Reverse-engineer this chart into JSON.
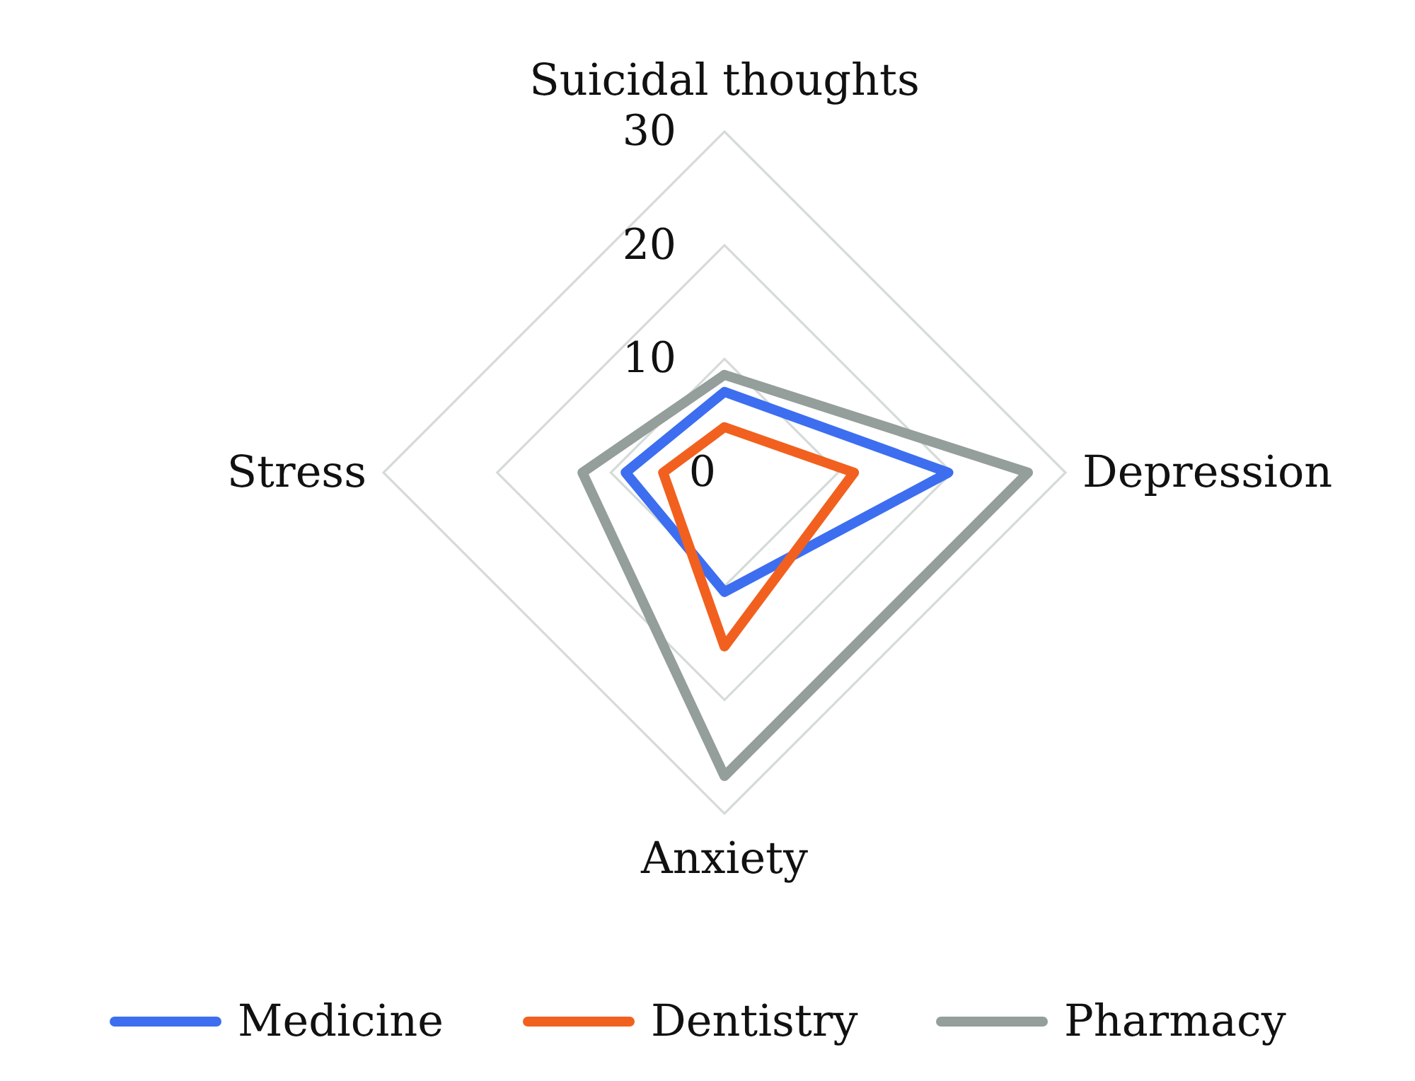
{
  "chart_data": {
    "type": "radar",
    "categories": [
      "Suicidal thoughts",
      "Depression",
      "Anxiety",
      "Stress"
    ],
    "series": [
      {
        "name": "Medicine",
        "color": "#3d6ef0",
        "values": [
          7.1,
          19.7,
          10.5,
          8.7
        ]
      },
      {
        "name": "Dentistry",
        "color": "#f2601f",
        "values": [
          4.0,
          11.4,
          15.3,
          5.4
        ]
      },
      {
        "name": "Pharmacy",
        "color": "#949e9a",
        "values": [
          8.6,
          26.7,
          26.7,
          12.5
        ]
      }
    ],
    "ylim": [
      0,
      30
    ],
    "yticks": [
      0,
      10,
      20,
      30
    ],
    "grid": true,
    "legend": "bottom"
  }
}
